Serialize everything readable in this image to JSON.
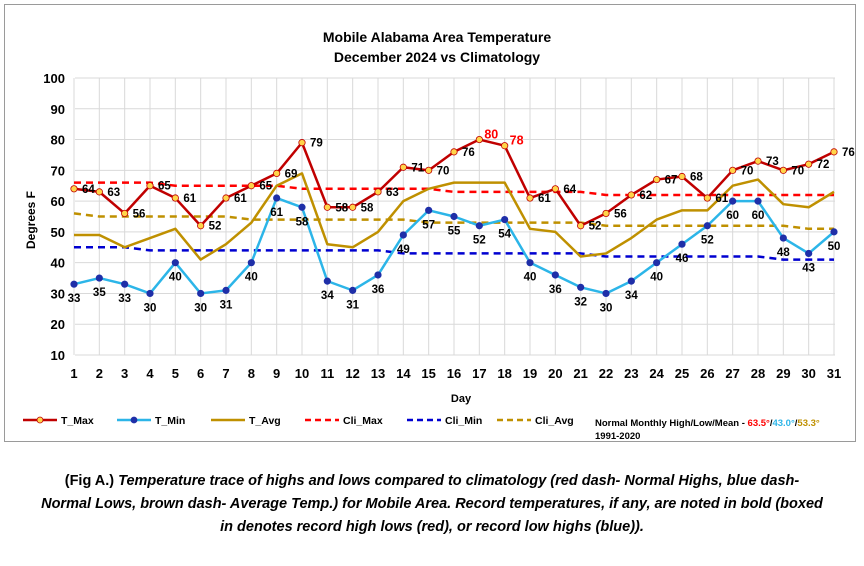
{
  "chart_data": {
    "type": "line",
    "title": "Mobile Alabama Area Temperature",
    "subtitle": "December 2024 vs Climatology",
    "xlabel": "Day",
    "ylabel": "Degrees F",
    "xlim": [
      1,
      31
    ],
    "ylim": [
      10,
      100
    ],
    "ytick_step": 10,
    "grid": true,
    "x": [
      1,
      2,
      3,
      4,
      5,
      6,
      7,
      8,
      9,
      10,
      11,
      12,
      13,
      14,
      15,
      16,
      17,
      18,
      19,
      20,
      21,
      22,
      23,
      24,
      25,
      26,
      27,
      28,
      29,
      30,
      31
    ],
    "series": [
      {
        "name": "T_Max",
        "color": "#c00000",
        "marker": "#ffd54a",
        "style": "solid",
        "values": [
          64,
          63,
          56,
          65,
          61,
          52,
          61,
          65,
          69,
          79,
          58,
          58,
          63,
          71,
          70,
          76,
          80,
          78,
          61,
          64,
          52,
          56,
          62,
          67,
          68,
          61,
          70,
          73,
          70,
          72,
          76
        ]
      },
      {
        "name": "T_Min",
        "color": "#2cb5e8",
        "marker": "#1f2fa8",
        "style": "solid",
        "values": [
          33,
          35,
          33,
          30,
          40,
          30,
          31,
          40,
          61,
          58,
          34,
          31,
          36,
          49,
          57,
          55,
          52,
          54,
          40,
          36,
          32,
          30,
          34,
          40,
          46,
          52,
          60,
          60,
          48,
          43,
          50
        ]
      },
      {
        "name": "T_Avg",
        "color": "#bf9000",
        "style": "solid",
        "values": [
          49,
          49,
          45,
          48,
          51,
          41,
          46,
          53,
          65,
          69,
          46,
          45,
          50,
          60,
          64,
          66,
          66,
          66,
          51,
          50,
          42,
          43,
          48,
          54,
          57,
          57,
          65,
          67,
          59,
          58,
          63
        ]
      },
      {
        "name": "Cli_Max",
        "color": "#ff0000",
        "style": "dash",
        "values": [
          66,
          66,
          66,
          66,
          65,
          65,
          65,
          65,
          65,
          64,
          64,
          64,
          64,
          64,
          64,
          63,
          63,
          63,
          63,
          63,
          63,
          62,
          62,
          62,
          62,
          62,
          62,
          62,
          62,
          62,
          62
        ]
      },
      {
        "name": "Cli_Min",
        "color": "#0000d0",
        "style": "dash",
        "values": [
          45,
          45,
          45,
          44,
          44,
          44,
          44,
          44,
          44,
          44,
          44,
          44,
          44,
          43,
          43,
          43,
          43,
          43,
          43,
          43,
          43,
          42,
          42,
          42,
          42,
          42,
          42,
          42,
          41,
          41,
          41
        ]
      },
      {
        "name": "Cli_Avg",
        "color": "#bf9000",
        "style": "dash",
        "values": [
          56,
          55,
          55,
          55,
          55,
          55,
          55,
          54,
          54,
          54,
          54,
          54,
          54,
          54,
          53,
          53,
          53,
          53,
          53,
          53,
          53,
          52,
          52,
          52,
          52,
          52,
          52,
          52,
          52,
          51,
          51
        ]
      }
    ],
    "max_labels": [
      "64",
      "63",
      "56",
      "65",
      "61",
      "52",
      "61",
      "65",
      "69",
      "79",
      "58",
      "58",
      "63",
      "71",
      "70",
      "76",
      "80",
      "78",
      "61",
      "64",
      "52",
      "56",
      "62",
      "67",
      "68",
      "61",
      "70",
      "73",
      "70",
      "72",
      "76"
    ],
    "min_labels": [
      "33",
      "35",
      "33",
      "30",
      "40",
      "30",
      "31",
      "40",
      "61",
      "58",
      "34",
      "31",
      "36",
      "49",
      "57",
      "55",
      "52",
      "54",
      "40",
      "36",
      "32",
      "30",
      "34",
      "40",
      "46",
      "52",
      "60",
      "60",
      "48",
      "43",
      "50"
    ],
    "record_days": [
      17,
      18
    ],
    "record_color": "#ff0000",
    "legend_placement": "bottom",
    "normals_note": {
      "prefix": "Normal Monthly High/Low/Mean - ",
      "high": "63.5°",
      "sep1": "/",
      "low": "43.0°",
      "sep2": "/",
      "mean": "53.3°",
      "period": "1991-2020",
      "high_color": "#ff0000",
      "low_color": "#2cb5e8",
      "mean_color": "#bf9000"
    }
  },
  "caption": {
    "lead": "(Fig A.)",
    "text": "Temperature trace of highs and lows compared to climatology (red dash- Normal Highs, blue dash- Normal Lows, brown dash- Average Temp.) for Mobile Area. Record temperatures, if any, are noted in bold (boxed in denotes record high lows (red), or record low highs (blue))."
  }
}
